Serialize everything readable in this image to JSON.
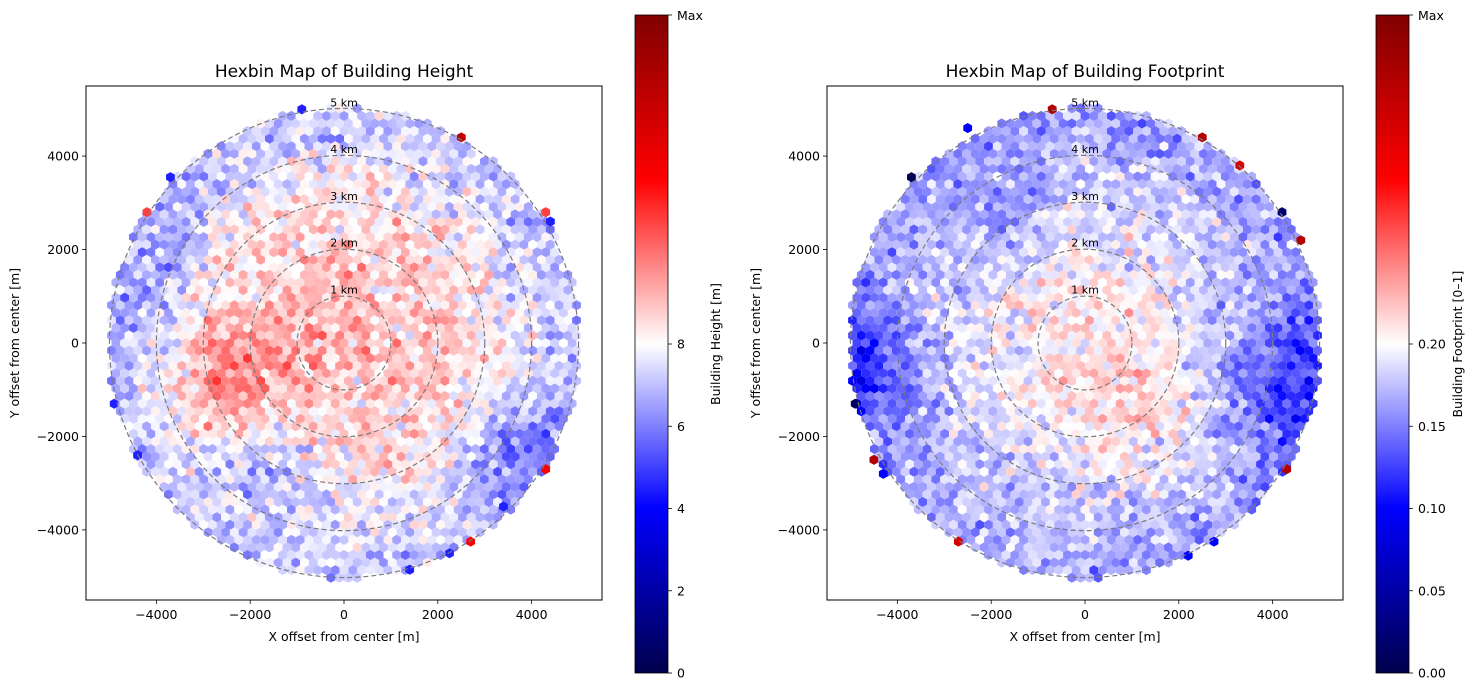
{
  "chart_data": [
    {
      "type": "hexbin",
      "title": "Hexbin Map of Building Height",
      "xlabel": "X offset from center [m]",
      "ylabel": "Y offset from center [m]",
      "xlim": [
        -5500,
        5500
      ],
      "ylim": [
        -5500,
        5500
      ],
      "xticks": [
        -4000,
        -2000,
        0,
        2000,
        4000
      ],
      "yticks": [
        -4000,
        -2000,
        0,
        2000,
        4000
      ],
      "xtick_labels": [
        "−4000",
        "−2000",
        "0",
        "2000",
        "4000"
      ],
      "ytick_labels": [
        "−4000",
        "−2000",
        "0",
        "2000",
        "4000"
      ],
      "extent_radius_m": 5000,
      "rings_km": [
        1,
        2,
        3,
        4,
        5
      ],
      "ring_labels": [
        "1 km",
        "2 km",
        "3 km",
        "4 km",
        "5 km"
      ],
      "colormap": "seismic",
      "colorbar": {
        "label": "Building Height [m]",
        "vmin": 0,
        "vcenter": 8,
        "ticks": [
          0,
          2,
          4,
          6,
          8
        ],
        "tick_labels": [
          "0",
          "2",
          "4",
          "6",
          "8"
        ],
        "max_label": "Max"
      },
      "pattern": {
        "center_value": 8.9,
        "ring_profile": [
          [
            0,
            8.9
          ],
          [
            1000,
            8.9
          ],
          [
            2000,
            8.8
          ],
          [
            3000,
            8.4
          ],
          [
            4000,
            7.6
          ],
          [
            5000,
            7.0
          ]
        ],
        "hotspots": [
          {
            "x": -2400,
            "y": -900,
            "r": 900,
            "delta": 1.6
          },
          {
            "x": -1600,
            "y": -2400,
            "r": 800,
            "delta": -1.6
          },
          {
            "x": 3700,
            "y": -2300,
            "r": 900,
            "delta": -1.4
          },
          {
            "x": -3800,
            "y": 1500,
            "r": 900,
            "delta": -0.8
          }
        ],
        "edge_outliers": [
          {
            "x": 2500,
            "y": 4400,
            "v": 14
          },
          {
            "x": -4200,
            "y": 2800,
            "v": 11
          },
          {
            "x": 4300,
            "y": 2800,
            "v": 11
          },
          {
            "x": -900,
            "y": 5000,
            "v": 4.5
          },
          {
            "x": -3700,
            "y": 3550,
            "v": 4.5
          },
          {
            "x": 4400,
            "y": 2600,
            "v": 4.5
          },
          {
            "x": -4900,
            "y": -1300,
            "v": 4.5
          },
          {
            "x": -4400,
            "y": -2400,
            "v": 4.5
          },
          {
            "x": 4300,
            "y": -2700,
            "v": 12
          },
          {
            "x": 2700,
            "y": -4250,
            "v": 12
          },
          {
            "x": 2250,
            "y": -4500,
            "v": 4.5
          },
          {
            "x": 1400,
            "y": -4850,
            "v": 4.5
          },
          {
            "x": 3400,
            "y": -3500,
            "v": 4.5
          }
        ]
      }
    },
    {
      "type": "hexbin",
      "title": "Hexbin Map of Building Footprint",
      "xlabel": "X offset from center [m]",
      "ylabel": "Y offset from center [m]",
      "xlim": [
        -5500,
        5500
      ],
      "ylim": [
        -5500,
        5500
      ],
      "xticks": [
        -4000,
        -2000,
        0,
        2000,
        4000
      ],
      "yticks": [
        -4000,
        -2000,
        0,
        2000,
        4000
      ],
      "xtick_labels": [
        "−4000",
        "−2000",
        "0",
        "2000",
        "4000"
      ],
      "ytick_labels": [
        "−4000",
        "−2000",
        "0",
        "2000",
        "4000"
      ],
      "extent_radius_m": 5000,
      "rings_km": [
        1,
        2,
        3,
        4,
        5
      ],
      "ring_labels": [
        "1 km",
        "2 km",
        "3 km",
        "4 km",
        "5 km"
      ],
      "colormap": "seismic",
      "colorbar": {
        "label": "Building Footprint [0–1]",
        "vmin": 0,
        "vcenter": 0.2,
        "ticks": [
          0,
          0.05,
          0.1,
          0.15,
          0.2
        ],
        "tick_labels": [
          "0.00",
          "0.05",
          "0.10",
          "0.15",
          "0.20"
        ],
        "max_label": "Max"
      },
      "pattern": {
        "center_value": 0.205,
        "ring_profile": [
          [
            0,
            0.205
          ],
          [
            1000,
            0.205
          ],
          [
            2000,
            0.195
          ],
          [
            3000,
            0.185
          ],
          [
            4000,
            0.175
          ],
          [
            5000,
            0.16
          ]
        ],
        "hotspots": [
          {
            "x": -4700,
            "y": -500,
            "r": 900,
            "delta": -0.05
          },
          {
            "x": 4400,
            "y": -800,
            "r": 1100,
            "delta": -0.05
          },
          {
            "x": -1800,
            "y": 2800,
            "r": 800,
            "delta": -0.02
          },
          {
            "x": 1500,
            "y": -1300,
            "r": 900,
            "delta": 0.02
          }
        ],
        "edge_outliers": [
          {
            "x": -3700,
            "y": 3550,
            "v": 0.0
          },
          {
            "x": 4200,
            "y": 2800,
            "v": 0.02
          },
          {
            "x": 4600,
            "y": 2200,
            "v": 0.36
          },
          {
            "x": -700,
            "y": 5000,
            "v": 0.36
          },
          {
            "x": 2500,
            "y": 4400,
            "v": 0.36
          },
          {
            "x": 3300,
            "y": 3800,
            "v": 0.33
          },
          {
            "x": -2500,
            "y": 4600,
            "v": 0.1
          },
          {
            "x": -4900,
            "y": -1300,
            "v": 0.01
          },
          {
            "x": -4500,
            "y": -2500,
            "v": 0.36
          },
          {
            "x": 4300,
            "y": -2700,
            "v": 0.36
          },
          {
            "x": 2750,
            "y": -4250,
            "v": 0.1
          },
          {
            "x": 2200,
            "y": -4550,
            "v": 0.1
          },
          {
            "x": -2700,
            "y": -4250,
            "v": 0.33
          },
          {
            "x": -4300,
            "y": -2800,
            "v": 0.1
          }
        ]
      }
    }
  ]
}
